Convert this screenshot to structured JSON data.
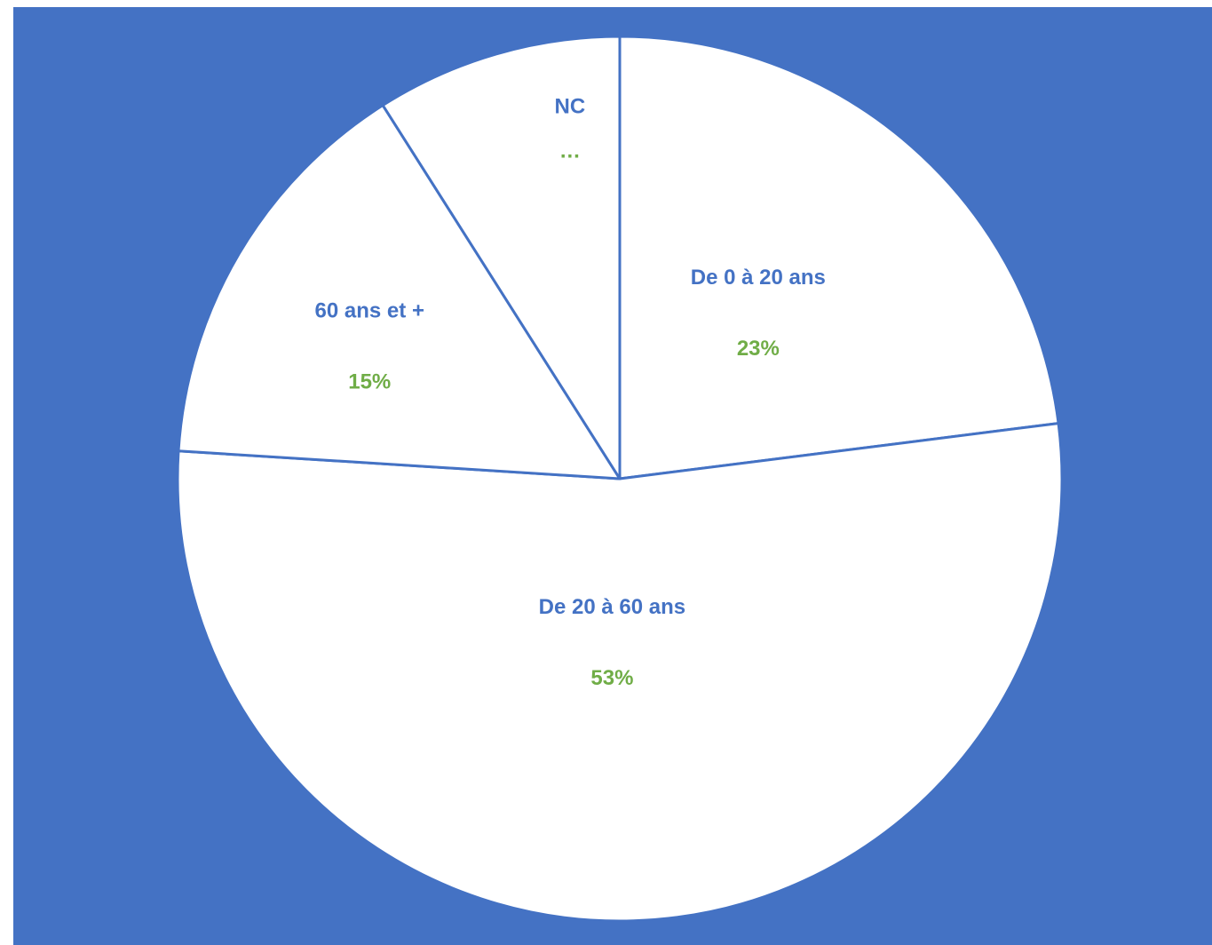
{
  "colors": {
    "background": "#4472C4",
    "slice_fill": "#FFFFFF",
    "slice_border": "#4472C4",
    "category_label": "#4472C4",
    "value_label": "#70AD47"
  },
  "chart_data": {
    "type": "pie",
    "title": "",
    "categories": [
      "De 0 à 20 ans",
      "De 20 à 60 ans",
      "60 ans et +",
      "NC"
    ],
    "values": [
      23,
      53,
      15,
      9
    ],
    "value_labels": [
      "23%",
      "53%",
      "15%",
      "…"
    ],
    "start_angle_deg": 0,
    "direction": "clockwise",
    "legend": "none",
    "data_labels": "inside"
  }
}
